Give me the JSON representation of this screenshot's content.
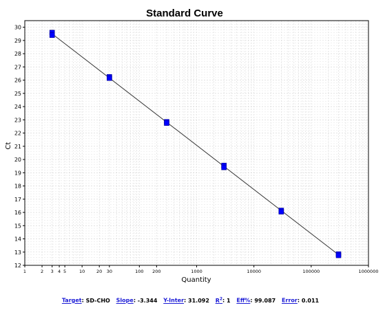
{
  "chart_data": {
    "type": "scatter",
    "title": "Standard Curve",
    "xlabel": "Quantity",
    "ylabel": "Ct",
    "x_scale": "log",
    "xlim": [
      1,
      1000000
    ],
    "ylim": [
      12,
      30.5
    ],
    "grid": true,
    "x_tick_labels": [
      {
        "v": 1,
        "t": "1"
      },
      {
        "v": 2,
        "t": "2"
      },
      {
        "v": 3,
        "t": "3"
      },
      {
        "v": 4,
        "t": "4"
      },
      {
        "v": 5,
        "t": "5"
      },
      {
        "v": 10,
        "t": "10"
      },
      {
        "v": 20,
        "t": "20"
      },
      {
        "v": 30,
        "t": "30"
      },
      {
        "v": 100,
        "t": "100"
      },
      {
        "v": 200,
        "t": "200"
      },
      {
        "v": 1000,
        "t": "1000"
      },
      {
        "v": 10000,
        "t": "10000"
      },
      {
        "v": 100000,
        "t": "100000"
      },
      {
        "v": 1000000,
        "t": "1000000"
      }
    ],
    "y_ticks": [
      12,
      13,
      14,
      15,
      16,
      17,
      18,
      19,
      20,
      21,
      22,
      23,
      24,
      25,
      26,
      27,
      28,
      29,
      30
    ],
    "series": [
      {
        "points": [
          {
            "x": 3,
            "y": 29.6
          },
          {
            "x": 3,
            "y": 29.4
          },
          {
            "x": 30,
            "y": 26.25
          },
          {
            "x": 30,
            "y": 26.15
          },
          {
            "x": 300,
            "y": 22.85
          },
          {
            "x": 300,
            "y": 22.75
          },
          {
            "x": 3000,
            "y": 19.55
          },
          {
            "x": 3000,
            "y": 19.4
          },
          {
            "x": 30000,
            "y": 16.15
          },
          {
            "x": 30000,
            "y": 16.05
          },
          {
            "x": 300000,
            "y": 12.85
          },
          {
            "x": 300000,
            "y": 12.75
          }
        ],
        "color": "#0000ff"
      }
    ],
    "fit_line": {
      "x": [
        3,
        300000
      ],
      "y": [
        29.5,
        12.8
      ],
      "color": "#333333"
    }
  },
  "stats": {
    "target_label": "Target",
    "target_value": "SD-CHO",
    "slope_label": "Slope",
    "slope_value": "-3.344",
    "yinter_label": "Y-Inter",
    "yinter_value": "31.092",
    "r2_label": "R",
    "r2_sup": "2",
    "r2_value": "1",
    "eff_label": "Eff%",
    "eff_value": "99.087",
    "error_label": "Error",
    "error_value": "0.011"
  }
}
